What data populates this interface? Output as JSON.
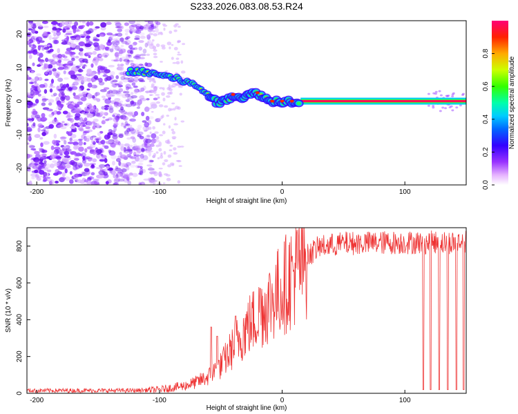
{
  "figure_title": "S233.2026.083.08.53.R24",
  "chart_data": [
    {
      "type": "heatmap",
      "title": "S233.2026.083.08.53.R24",
      "xlabel": "Height of straight line (km)",
      "ylabel": "Frequency (Hz)",
      "xlim": [
        -208,
        150
      ],
      "ylim": [
        -25,
        24
      ],
      "x_ticks": [
        -200,
        -100,
        0,
        100
      ],
      "y_ticks": [
        -20,
        -10,
        0,
        10,
        20
      ],
      "colorbar": {
        "label": "Normalized spectral amplitude",
        "range": [
          0,
          1
        ],
        "ticks": [
          0.0,
          0.2,
          0.4,
          0.6,
          0.8
        ],
        "colors": [
          "#ffffff",
          "#cc66ff",
          "#7a1cff",
          "#0000ff",
          "#00c8ff",
          "#00ff88",
          "#33ff00",
          "#ccff00",
          "#ffcc00",
          "#ff6600",
          "#ff0000",
          "#ff0088"
        ]
      },
      "tone_track": [
        {
          "x": -125,
          "freq": 9.0
        },
        {
          "x": -110,
          "freq": 8.5
        },
        {
          "x": -100,
          "freq": 8.0
        },
        {
          "x": -90,
          "freq": 7.0
        },
        {
          "x": -80,
          "freq": 6.0
        },
        {
          "x": -70,
          "freq": 4.5
        },
        {
          "x": -60,
          "freq": 2.0
        },
        {
          "x": -55,
          "freq": 0.0
        },
        {
          "x": -50,
          "freq": -0.5
        },
        {
          "x": -45,
          "freq": 0.5
        },
        {
          "x": -40,
          "freq": 2.0
        },
        {
          "x": -35,
          "freq": 1.0
        },
        {
          "x": -30,
          "freq": 1.5
        },
        {
          "x": -25,
          "freq": 2.0
        },
        {
          "x": -20,
          "freq": 2.5
        },
        {
          "x": -15,
          "freq": 1.0
        },
        {
          "x": -10,
          "freq": 0.0
        },
        {
          "x": 0,
          "freq": 0.0
        },
        {
          "x": 15,
          "freq": 0.0
        },
        {
          "x": 150,
          "freq": 0.0
        }
      ]
    },
    {
      "type": "line",
      "xlabel": "Height of straight line (km)",
      "ylabel": "SNR (10 * v/v)",
      "xlim": [
        -208,
        150
      ],
      "ylim": [
        0,
        900
      ],
      "x_ticks": [
        -200,
        -100,
        0,
        100
      ],
      "y_ticks": [
        0,
        200,
        400,
        600,
        800
      ],
      "series_color": "#ee3333",
      "envelope": [
        {
          "x": -208,
          "y": 15
        },
        {
          "x": -120,
          "y": 15
        },
        {
          "x": -100,
          "y": 20
        },
        {
          "x": -80,
          "y": 40
        },
        {
          "x": -70,
          "y": 60
        },
        {
          "x": -60,
          "y": 90
        },
        {
          "x": -50,
          "y": 150
        },
        {
          "x": -40,
          "y": 250
        },
        {
          "x": -30,
          "y": 350
        },
        {
          "x": -20,
          "y": 420
        },
        {
          "x": -10,
          "y": 500
        },
        {
          "x": 0,
          "y": 570
        },
        {
          "x": 10,
          "y": 660
        },
        {
          "x": 20,
          "y": 740
        },
        {
          "x": 30,
          "y": 790
        },
        {
          "x": 50,
          "y": 810
        },
        {
          "x": 100,
          "y": 815
        },
        {
          "x": 150,
          "y": 815
        }
      ],
      "spikes": [
        {
          "x": -58,
          "y": 360
        },
        {
          "x": -53,
          "y": 310
        },
        {
          "x": -38,
          "y": 420
        },
        {
          "x": -18,
          "y": 570
        },
        {
          "x": 115,
          "y": 20
        },
        {
          "x": 121,
          "y": 20
        },
        {
          "x": 128,
          "y": 20
        },
        {
          "x": 135,
          "y": 20
        },
        {
          "x": 142,
          "y": 20
        },
        {
          "x": 148,
          "y": 20
        }
      ]
    }
  ]
}
